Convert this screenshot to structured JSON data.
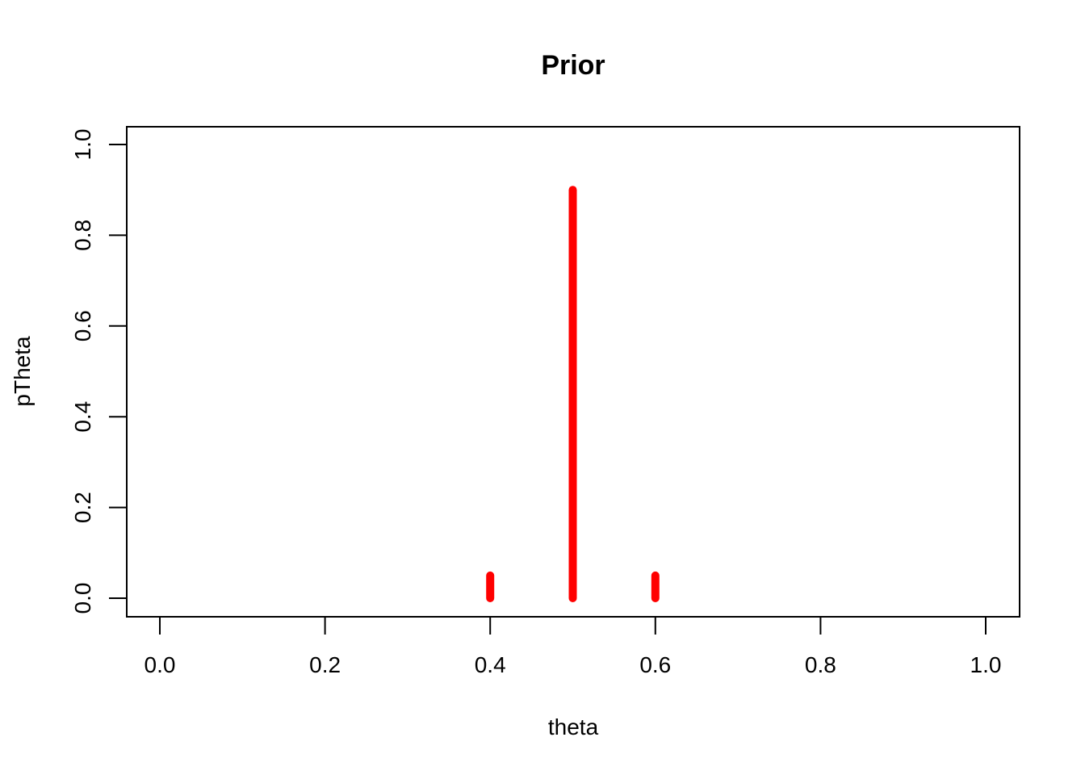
{
  "chart_data": {
    "type": "line",
    "plot_style": "vertical-lines",
    "title": "Prior",
    "xlabel": "theta",
    "ylabel": "pTheta",
    "xlim": [
      0,
      1
    ],
    "ylim": [
      0,
      1
    ],
    "x_ticks": [
      0.0,
      0.2,
      0.4,
      0.6,
      0.8,
      1.0
    ],
    "x_tick_labels": [
      "0.0",
      "0.2",
      "0.4",
      "0.6",
      "0.8",
      "1.0"
    ],
    "y_ticks": [
      0.0,
      0.2,
      0.4,
      0.6,
      0.8,
      1.0
    ],
    "y_tick_labels": [
      "0.0",
      "0.2",
      "0.4",
      "0.6",
      "0.8",
      "1.0"
    ],
    "grid": false,
    "series": [
      {
        "name": "pTheta",
        "color": "#ff0000",
        "x": [
          0.4,
          0.5,
          0.6
        ],
        "y": [
          0.05,
          0.9,
          0.05
        ]
      }
    ]
  }
}
